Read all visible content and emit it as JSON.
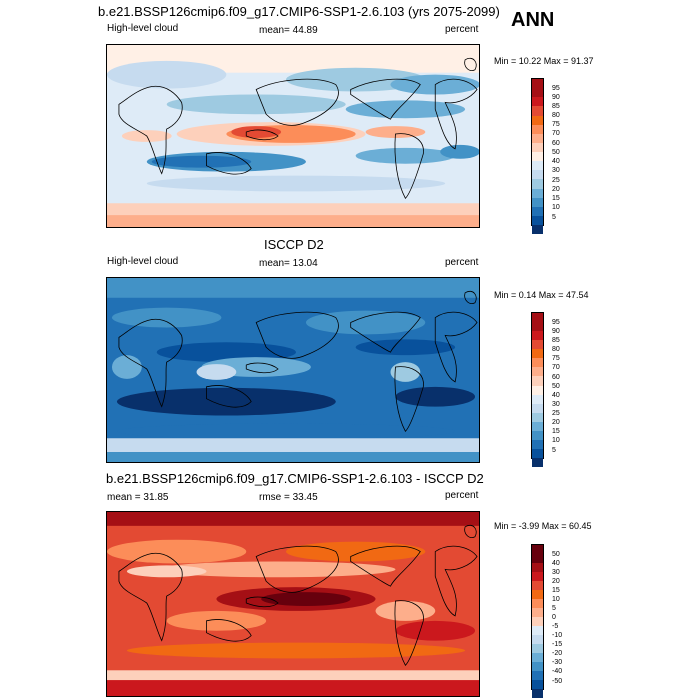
{
  "season": "ANN",
  "panels": [
    {
      "title": "b.e21.BSSP126cmip6.f09_g17.CMIP6-SSP1-2.6.103 (yrs 2075-2099)",
      "left_label": "High-level cloud",
      "center_label": "mean=  44.89",
      "units": "percent",
      "minmax": "Min =  10.22 Max =  91.37",
      "colorbar_labels": [
        "95",
        "90",
        "85",
        "80",
        "75",
        "70",
        "60",
        "50",
        "40",
        "30",
        "25",
        "20",
        "15",
        "10",
        "5"
      ],
      "colorbar_colors": [
        "#a50f15",
        "#cb181d",
        "#e34a33",
        "#f16913",
        "#fc8d59",
        "#fdae8b",
        "#fdd0bb",
        "#fff0e6",
        "#deebf7",
        "#c6dbef",
        "#9ecae1",
        "#6baed6",
        "#4292c6",
        "#2171b5",
        "#08519c",
        "#08306b"
      ]
    },
    {
      "title": "ISCCP D2",
      "left_label": "High-level cloud",
      "center_label": "mean=  13.04",
      "units": "percent",
      "minmax": "Min =   0.14 Max =  47.54",
      "colorbar_labels": [
        "95",
        "90",
        "85",
        "80",
        "75",
        "70",
        "60",
        "50",
        "40",
        "30",
        "25",
        "20",
        "15",
        "10",
        "5"
      ],
      "colorbar_colors": [
        "#a50f15",
        "#cb181d",
        "#e34a33",
        "#f16913",
        "#fc8d59",
        "#fdae8b",
        "#fdd0bb",
        "#fff0e6",
        "#deebf7",
        "#c6dbef",
        "#9ecae1",
        "#6baed6",
        "#4292c6",
        "#2171b5",
        "#08519c",
        "#08306b"
      ]
    },
    {
      "title": "b.e21.BSSP126cmip6.f09_g17.CMIP6-SSP1-2.6.103 - ISCCP D2",
      "left_label": "mean =  31.85",
      "center_label": "rmse =  33.45",
      "units": "percent",
      "minmax": "Min =  -3.99 Max =  60.45",
      "colorbar_labels": [
        "50",
        "40",
        "30",
        "20",
        "15",
        "10",
        "5",
        "0",
        "-5",
        "-10",
        "-15",
        "-20",
        "-30",
        "-40",
        "-50"
      ],
      "colorbar_colors": [
        "#67000d",
        "#a50f15",
        "#cb181d",
        "#e34a33",
        "#f16913",
        "#fc8d59",
        "#fdae8b",
        "#fdd0bb",
        "#deebf7",
        "#c6dbef",
        "#9ecae1",
        "#6baed6",
        "#4292c6",
        "#2171b5",
        "#08519c",
        "#08306b"
      ]
    }
  ]
}
